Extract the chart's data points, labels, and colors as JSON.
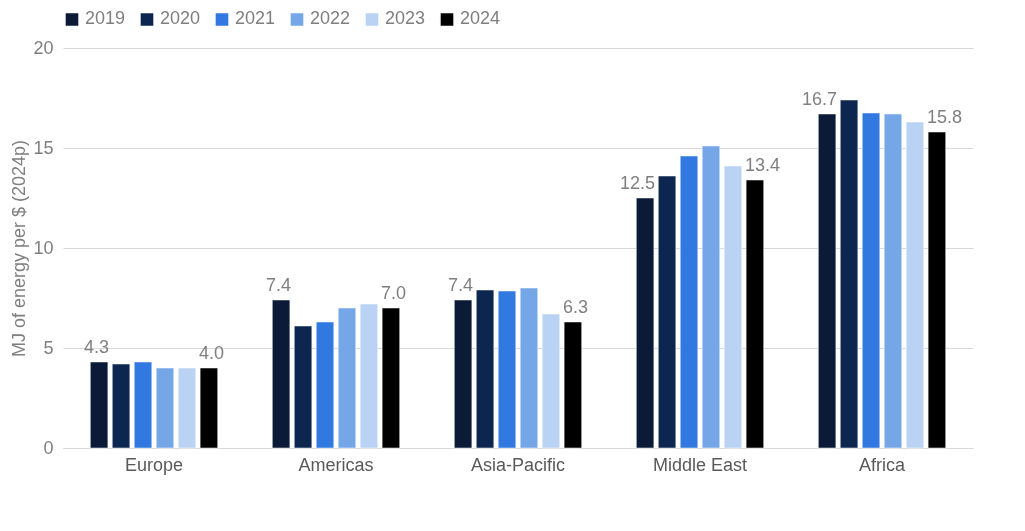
{
  "chart_data": {
    "type": "bar",
    "ylabel": "MJ of energy per $ (2024p)",
    "categories": [
      "Europe",
      "Americas",
      "Asia-Pacific",
      "Middle East",
      "Africa"
    ],
    "series": [
      {
        "name": "2019",
        "color": "#0b1a36",
        "values": [
          4.3,
          7.4,
          7.4,
          12.5,
          16.7
        ],
        "value_labels": [
          "4.3",
          "7.4",
          "7.4",
          "12.5",
          "16.7"
        ]
      },
      {
        "name": "2020",
        "color": "#0d2650",
        "values": [
          4.2,
          6.1,
          7.9,
          13.6,
          17.4
        ]
      },
      {
        "name": "2021",
        "color": "#3179e0",
        "values": [
          4.3,
          6.3,
          7.85,
          14.6,
          16.75
        ]
      },
      {
        "name": "2022",
        "color": "#75a6e8",
        "values": [
          4.0,
          7.0,
          8.0,
          15.1,
          16.7
        ]
      },
      {
        "name": "2023",
        "color": "#bad3f4",
        "values": [
          4.0,
          7.2,
          6.7,
          14.1,
          16.3
        ]
      },
      {
        "name": "2024",
        "color": "#000000",
        "values": [
          4.0,
          7.0,
          6.3,
          13.4,
          15.8
        ],
        "value_labels": [
          "4.0",
          "7.0",
          "6.3",
          "13.4",
          "15.8"
        ]
      }
    ],
    "ylim": [
      0,
      20
    ],
    "yticks": [
      0,
      5,
      10,
      15,
      20
    ],
    "grid": "y",
    "legend": "top"
  }
}
